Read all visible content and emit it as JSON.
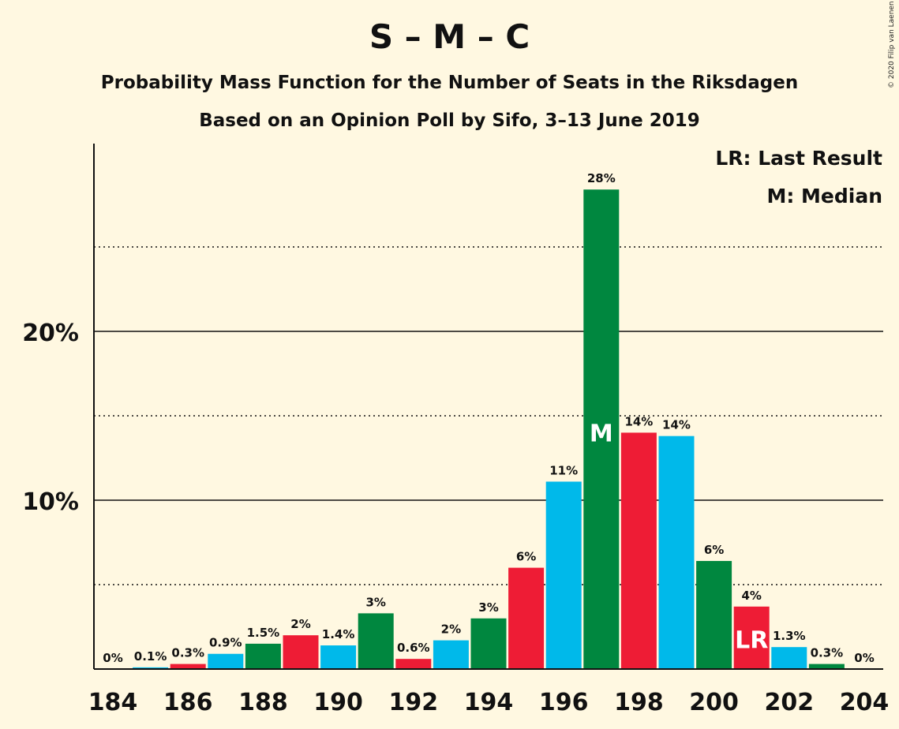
{
  "title": "S – M – C",
  "subtitle1": "Probability Mass Function for the Number of Seats in the Riksdagen",
  "subtitle2": "Based on an Opinion Poll by Sifo, 3–13 June 2019",
  "legend": {
    "last_result": "LR: Last Result",
    "median": "M: Median"
  },
  "copyright": "© 2020 Filip van Laenen",
  "colors": {
    "background": "#FFF8E1",
    "red": "#EE1C35",
    "green": "#00873F",
    "blue": "#00B9EA"
  },
  "chart_data": {
    "type": "bar",
    "x": [
      184,
      185,
      186,
      187,
      188,
      189,
      190,
      191,
      192,
      193,
      194,
      195,
      196,
      197,
      198,
      199,
      200,
      201,
      202,
      203,
      204
    ],
    "values": [
      0,
      0.1,
      0.3,
      0.9,
      1.5,
      2.0,
      1.4,
      3.3,
      0.6,
      1.7,
      3.0,
      6.0,
      11.1,
      28.4,
      14.0,
      13.8,
      6.4,
      3.7,
      1.3,
      0.3,
      0
    ],
    "labels": [
      "0%",
      "0.1%",
      "0.3%",
      "0.9%",
      "1.5%",
      "2%",
      "1.4%",
      "3%",
      "0.6%",
      "2%",
      "3%",
      "6%",
      "11%",
      "28%",
      "14%",
      "14%",
      "6%",
      "4%",
      "1.3%",
      "0.3%",
      "0%"
    ],
    "bar_colors": [
      "green",
      "blue",
      "red",
      "blue",
      "green",
      "red",
      "blue",
      "green",
      "red",
      "blue",
      "green",
      "red",
      "blue",
      "green",
      "red",
      "blue",
      "green",
      "red",
      "blue",
      "green",
      "red"
    ],
    "xticks": [
      184,
      186,
      188,
      190,
      192,
      194,
      196,
      198,
      200,
      202,
      204
    ],
    "yticks": [
      {
        "value": 10,
        "label": "10%"
      },
      {
        "value": 20,
        "label": "20%"
      }
    ],
    "dotted_gridlines": [
      5,
      15,
      25
    ],
    "ylim": [
      0,
      31
    ],
    "median": {
      "x": 197,
      "label": "M"
    },
    "last_result": {
      "x": 201,
      "label": "LR"
    },
    "xlabel": "",
    "ylabel": ""
  }
}
